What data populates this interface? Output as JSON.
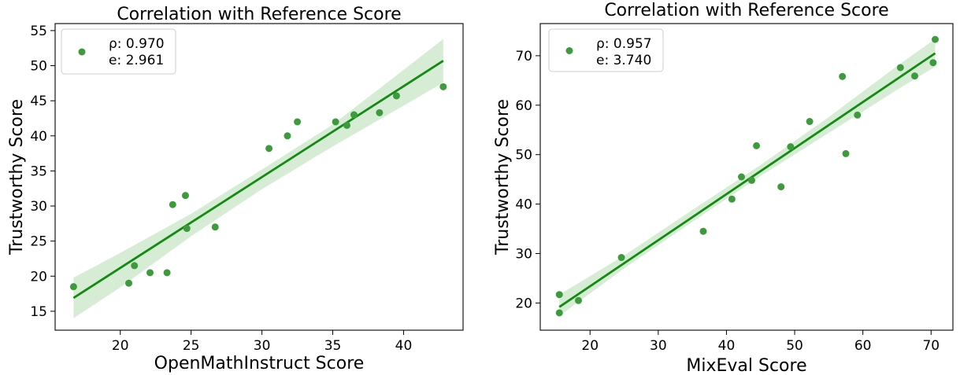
{
  "chart_data": [
    {
      "type": "scatter",
      "title": "Correlation with Reference Score",
      "xlabel": "OpenMathInstruct Score",
      "ylabel": "Trustworthy Score",
      "xlim": [
        15.4,
        44.2
      ],
      "ylim": [
        12.3,
        56.0
      ],
      "xticks": [
        20,
        25,
        30,
        35,
        40
      ],
      "yticks": [
        15,
        20,
        25,
        30,
        35,
        40,
        45,
        50,
        55
      ],
      "legend": {
        "position": "top-left",
        "lines": [
          "ρ: 0.970",
          "e: 2.961"
        ]
      },
      "colors": {
        "points": "#3d9b3d",
        "line": "#118c11",
        "band": "#d6ecd4"
      },
      "series": [
        {
          "x": [
            16.7,
            20.6,
            21.0,
            22.1,
            23.3,
            23.7,
            24.6,
            24.7,
            26.7,
            30.5,
            31.8,
            32.5,
            35.2,
            36.0,
            36.5,
            38.3,
            39.5,
            42.8
          ],
          "y": [
            18.5,
            19.0,
            21.5,
            20.5,
            20.5,
            30.2,
            31.5,
            26.8,
            27.0,
            38.2,
            40.0,
            42.0,
            42.0,
            41.5,
            43.0,
            43.3,
            45.7,
            47.0
          ]
        }
      ],
      "fit": {
        "x": [
          16.7,
          42.8
        ],
        "y": [
          16.9,
          50.7
        ]
      },
      "band": {
        "x": [
          16.7,
          20,
          25,
          30,
          35,
          40,
          42.8
        ],
        "lower": [
          14.0,
          18.4,
          25.7,
          32.4,
          38.5,
          44.3,
          47.6
        ],
        "upper": [
          19.8,
          23.3,
          28.9,
          35.2,
          41.6,
          49.4,
          53.8
        ]
      }
    },
    {
      "type": "scatter",
      "title": "Correlation with Reference Score",
      "xlabel": "MixEval Score",
      "ylabel": "Trustworthy Score",
      "xlim": [
        12.7,
        73.2
      ],
      "ylim": [
        14.5,
        76.5
      ],
      "xticks": [
        20,
        30,
        40,
        50,
        60,
        70
      ],
      "yticks": [
        20,
        30,
        40,
        50,
        60,
        70
      ],
      "legend": {
        "position": "top-left",
        "lines": [
          "ρ: 0.957",
          "e: 3.740"
        ]
      },
      "colors": {
        "points": "#3d9b3d",
        "line": "#118c11",
        "band": "#d6ecd4"
      },
      "series": [
        {
          "x": [
            15.5,
            15.5,
            18.3,
            24.6,
            36.6,
            40.8,
            42.2,
            43.7,
            44.4,
            48.0,
            49.4,
            52.2,
            57.0,
            57.5,
            59.2,
            65.5,
            67.6,
            70.3,
            70.6
          ],
          "y": [
            21.7,
            18.0,
            20.5,
            29.2,
            34.5,
            41.0,
            45.5,
            44.8,
            51.8,
            43.5,
            51.6,
            56.7,
            65.8,
            50.2,
            58.0,
            67.6,
            65.9,
            68.6,
            73.3
          ]
        }
      ],
      "fit": {
        "x": [
          15.5,
          70.6
        ],
        "y": [
          19.2,
          70.5
        ]
      },
      "band": {
        "x": [
          15.5,
          25,
          35,
          45,
          55,
          65,
          70.6
        ],
        "lower": [
          17.4,
          27.0,
          36.4,
          45.7,
          54.4,
          63.1,
          67.8
        ],
        "upper": [
          21.7,
          29.6,
          38.8,
          47.9,
          57.6,
          67.9,
          73.4
        ]
      }
    }
  ]
}
